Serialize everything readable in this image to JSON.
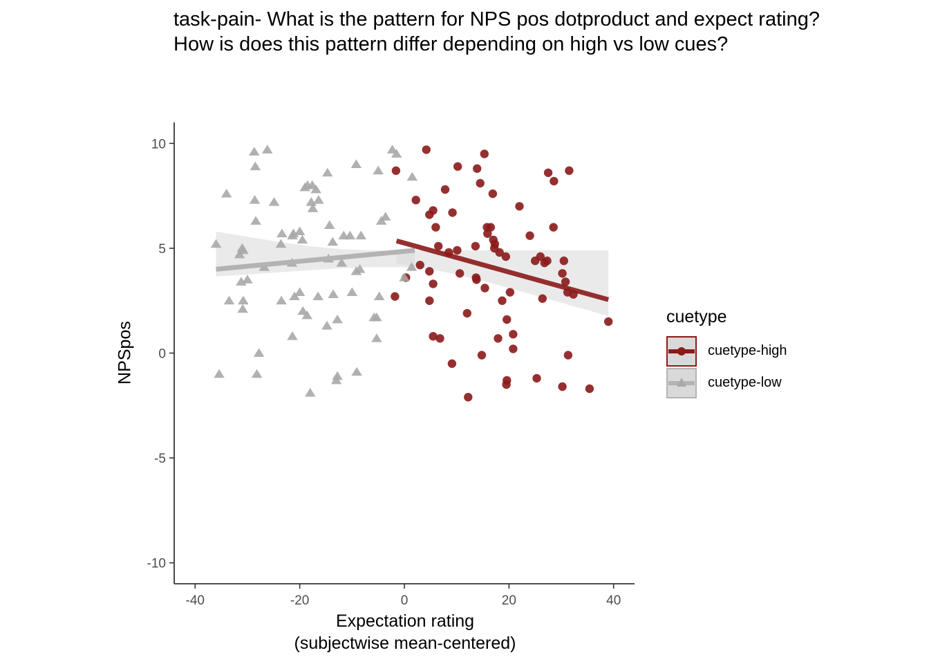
{
  "chart_data": {
    "type": "scatter",
    "title": "task-pain- What is the pattern for NPS pos dotproduct and expect rating?\nHow is does this pattern differ depending on high vs low cues?",
    "title_lines": [
      "task-pain- What is the pattern for NPS pos dotproduct and expect rating?",
      "How is does this pattern differ depending on high vs low cues?"
    ],
    "xlabel_lines": [
      "Expectation rating",
      "(subjectwise mean-centered)"
    ],
    "ylabel": "NPSpos",
    "xlim": [
      -44,
      44
    ],
    "ylim": [
      -11,
      11
    ],
    "x_ticks": [
      -40,
      -20,
      0,
      20,
      40
    ],
    "y_ticks": [
      -10,
      -5,
      0,
      5,
      10
    ],
    "grid": false,
    "legend_title": "cuetype",
    "legend_position": "right",
    "series": [
      {
        "name": "cuetype-high",
        "color": "#8b1a1a",
        "marker": "circle",
        "fit": {
          "x": [
            -1.5,
            39
          ],
          "y": [
            5.35,
            2.55
          ]
        },
        "band": {
          "x": [
            -1.5,
            2,
            5,
            10,
            15,
            20,
            25,
            30,
            35,
            39
          ],
          "lower": [
            4.25,
            4.15,
            4.0,
            3.75,
            3.45,
            3.1,
            2.75,
            2.4,
            2.05,
            1.75
          ],
          "upper": [
            4.9,
            4.9,
            4.9,
            4.9,
            4.9,
            4.9,
            4.9,
            4.9,
            4.9,
            4.9
          ]
        },
        "points": [
          [
            4.2,
            9.7
          ],
          [
            15.3,
            9.5
          ],
          [
            10.2,
            8.9
          ],
          [
            13.9,
            8.8
          ],
          [
            -1.6,
            8.7
          ],
          [
            27.5,
            8.6
          ],
          [
            31.5,
            8.7
          ],
          [
            28.6,
            8.2
          ],
          [
            14.5,
            8.1
          ],
          [
            7.8,
            7.8
          ],
          [
            16.9,
            7.6
          ],
          [
            2.2,
            7.3
          ],
          [
            22.0,
            7.0
          ],
          [
            5.5,
            6.8
          ],
          [
            9.2,
            6.7
          ],
          [
            4.8,
            6.6
          ],
          [
            6.0,
            6.0
          ],
          [
            15.8,
            6.0
          ],
          [
            16.5,
            6.0
          ],
          [
            28.5,
            6.0
          ],
          [
            24.0,
            5.6
          ],
          [
            15.9,
            5.7
          ],
          [
            17.0,
            5.4
          ],
          [
            17.3,
            5.2
          ],
          [
            6.5,
            5.1
          ],
          [
            13.6,
            5.1
          ],
          [
            10.1,
            4.9
          ],
          [
            17.2,
            5.0
          ],
          [
            18.2,
            4.8
          ],
          [
            8.5,
            4.8
          ],
          [
            19.4,
            4.6
          ],
          [
            26.0,
            4.6
          ],
          [
            25.0,
            4.4
          ],
          [
            26.8,
            4.3
          ],
          [
            27.3,
            4.4
          ],
          [
            30.5,
            4.4
          ],
          [
            3.0,
            4.2
          ],
          [
            4.8,
            3.9
          ],
          [
            10.6,
            3.8
          ],
          [
            30.2,
            3.8
          ],
          [
            0.3,
            3.6
          ],
          [
            13.7,
            3.6
          ],
          [
            13.8,
            3.5
          ],
          [
            30.8,
            3.4
          ],
          [
            5.5,
            3.3
          ],
          [
            15.4,
            3.1
          ],
          [
            20.2,
            2.9
          ],
          [
            31.2,
            2.9
          ],
          [
            32.3,
            2.8
          ],
          [
            -1.8,
            2.7
          ],
          [
            26.4,
            2.6
          ],
          [
            4.8,
            2.5
          ],
          [
            18.7,
            2.5
          ],
          [
            12.0,
            1.9
          ],
          [
            19.6,
            1.6
          ],
          [
            39.0,
            1.5
          ],
          [
            20.8,
            0.9
          ],
          [
            5.5,
            0.8
          ],
          [
            6.8,
            0.7
          ],
          [
            17.9,
            0.7
          ],
          [
            20.8,
            0.2
          ],
          [
            14.8,
            -0.1
          ],
          [
            31.3,
            -0.1
          ],
          [
            9.1,
            -0.5
          ],
          [
            25.3,
            -1.2
          ],
          [
            19.6,
            -1.3
          ],
          [
            19.5,
            -1.5
          ],
          [
            30.2,
            -1.6
          ],
          [
            35.4,
            -1.7
          ],
          [
            12.2,
            -2.1
          ]
        ]
      },
      {
        "name": "cuetype-low",
        "color": "#a9a9a9",
        "marker": "triangle",
        "fit": {
          "x": [
            -36,
            2
          ],
          "y": [
            4.0,
            4.9
          ]
        },
        "band": {
          "x": [
            -36,
            -30,
            -24,
            -18,
            -12,
            -6,
            0,
            2
          ],
          "lower": [
            3.65,
            3.75,
            3.85,
            3.95,
            4.05,
            4.1,
            4.1,
            4.05
          ],
          "upper": [
            5.8,
            5.55,
            5.3,
            5.1,
            4.95,
            4.9,
            4.85,
            4.85
          ]
        },
        "points": [
          [
            -2.3,
            9.7
          ],
          [
            -28.7,
            9.6
          ],
          [
            -26.2,
            9.7
          ],
          [
            -9.2,
            9.0
          ],
          [
            -28.5,
            8.9
          ],
          [
            -5.0,
            8.7
          ],
          [
            -1.5,
            9.5
          ],
          [
            -14.7,
            8.6
          ],
          [
            1.5,
            8.4
          ],
          [
            -18.5,
            8.0
          ],
          [
            -17.6,
            8.0
          ],
          [
            -19.0,
            7.9
          ],
          [
            -16.9,
            7.8
          ],
          [
            -34.0,
            7.6
          ],
          [
            -28.6,
            7.3
          ],
          [
            -17.8,
            7.2
          ],
          [
            -16.4,
            7.3
          ],
          [
            -24.9,
            7.2
          ],
          [
            -17.5,
            6.9
          ],
          [
            -3.6,
            6.5
          ],
          [
            -4.4,
            6.3
          ],
          [
            -28.4,
            6.3
          ],
          [
            -14.3,
            6.1
          ],
          [
            -21.2,
            5.7
          ],
          [
            -23.4,
            5.7
          ],
          [
            -20.0,
            5.8
          ],
          [
            -11.6,
            5.6
          ],
          [
            -8.3,
            5.6
          ],
          [
            -21.4,
            5.6
          ],
          [
            -19.5,
            5.4
          ],
          [
            -10.4,
            5.6
          ],
          [
            -36.0,
            5.2
          ],
          [
            -13.7,
            5.3
          ],
          [
            -23.6,
            5.2
          ],
          [
            -31.0,
            5.0
          ],
          [
            -30.8,
            4.9
          ],
          [
            -31.5,
            4.7
          ],
          [
            -14.5,
            4.5
          ],
          [
            -26.8,
            4.1
          ],
          [
            -21.5,
            4.3
          ],
          [
            -12.0,
            4.3
          ],
          [
            1.4,
            4.1
          ],
          [
            -8.5,
            4.0
          ],
          [
            -9.2,
            3.9
          ],
          [
            -30.0,
            3.5
          ],
          [
            -31.2,
            3.4
          ],
          [
            0.0,
            3.6
          ],
          [
            -10.0,
            2.9
          ],
          [
            -20.0,
            2.9
          ],
          [
            -21.0,
            2.7
          ],
          [
            -16.5,
            2.7
          ],
          [
            -13.6,
            2.8
          ],
          [
            -33.5,
            2.5
          ],
          [
            -30.8,
            2.5
          ],
          [
            -23.5,
            2.5
          ],
          [
            -4.8,
            2.7
          ],
          [
            -30.9,
            2.1
          ],
          [
            -19.4,
            2.0
          ],
          [
            -18.6,
            1.8
          ],
          [
            -5.8,
            1.7
          ],
          [
            -5.3,
            1.7
          ],
          [
            -12.8,
            1.6
          ],
          [
            -14.8,
            1.3
          ],
          [
            -21.4,
            0.8
          ],
          [
            -5.3,
            0.7
          ],
          [
            -27.8,
            0.0
          ],
          [
            -35.4,
            -1.0
          ],
          [
            -28.2,
            -1.0
          ],
          [
            -9.1,
            -0.9
          ],
          [
            -12.8,
            -1.1
          ],
          [
            -13.0,
            -1.3
          ],
          [
            -18.0,
            -1.9
          ]
        ]
      }
    ]
  }
}
